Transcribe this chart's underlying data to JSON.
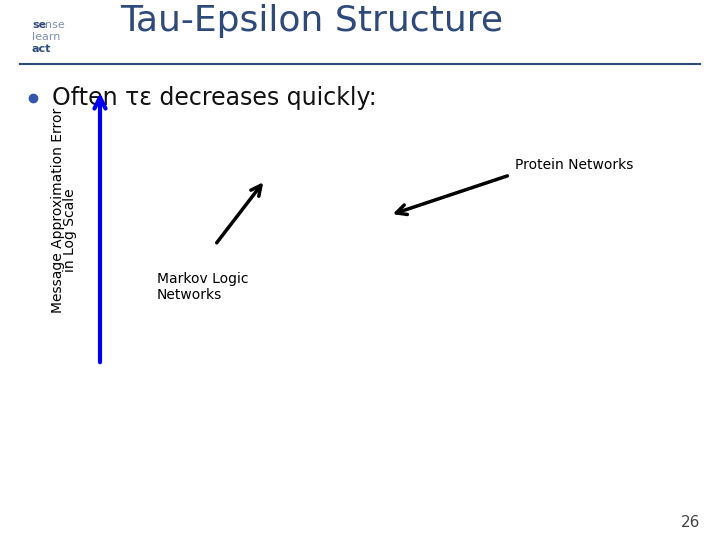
{
  "title": "Tau-Epsilon Structure",
  "title_color": "#2E4A7A",
  "title_fontsize": 26,
  "background_color": "#FFFFFF",
  "slide_number": "26",
  "bullet_text_before": "Often ",
  "bullet_tau": "τ",
  "bullet_epsilon_sub": "ε",
  "bullet_text_after": " decreases quickly:",
  "bullet_fontsize": 17,
  "ylabel_line1": "Message Approximation Error",
  "ylabel_line2": "in Log Scale",
  "ylabel_color": "#000000",
  "ylabel_fontsize": 10,
  "arrow_y_color": "#0000EE",
  "annotation_protein": "Protein Networks",
  "annotation_markov": "Markov Logic\nNetworks",
  "annotation_fontsize": 10,
  "logo_se_color": "#2E4A7A",
  "logo_nse_color": "#8090B0",
  "logo_learn_color": "#8090B0",
  "logo_act_color": "#2E4A7A",
  "header_line_color": "#2E4A7A",
  "bullet_color": "#3355AA"
}
